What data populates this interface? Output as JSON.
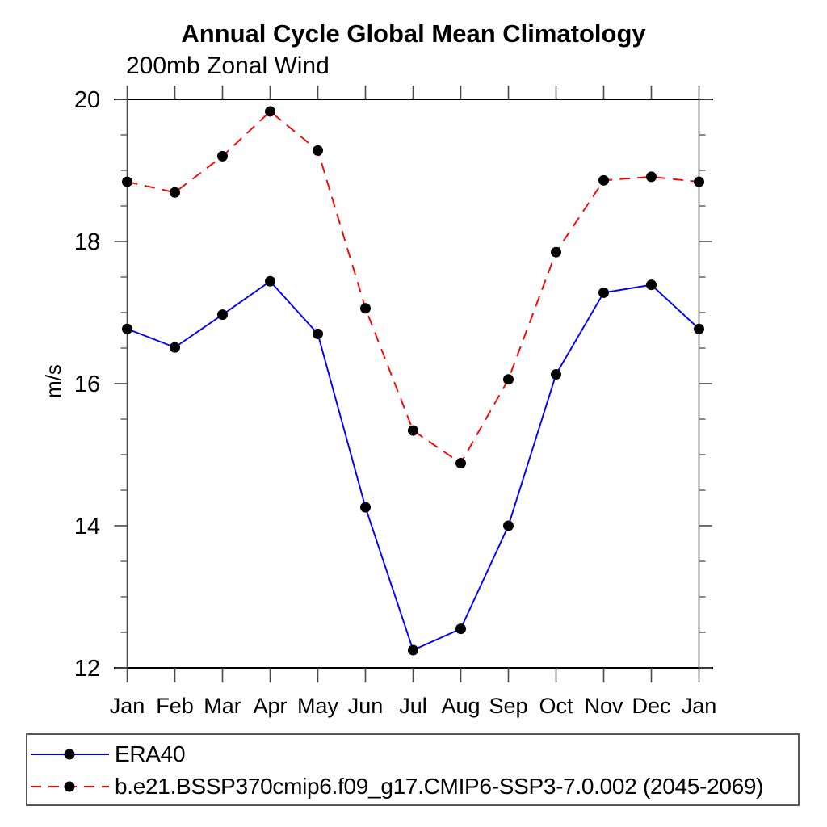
{
  "page": {
    "title": "Annual Cycle Global Mean Climatology",
    "subtitle": "200mb Zonal Wind",
    "ylabel": "m/s"
  },
  "legend": {
    "entries": [
      {
        "label": "ERA40"
      },
      {
        "label": "b.e21.BSSP370cmip6.f09_g17.CMIP6-SSP3-7.0.002 (2045-2069)"
      }
    ]
  },
  "chart_data": {
    "type": "line",
    "title": "Annual Cycle Global Mean Climatology",
    "subtitle": "200mb Zonal Wind",
    "xlabel": "",
    "ylabel": "m/s",
    "categories": [
      "Jan",
      "Feb",
      "Mar",
      "Apr",
      "May",
      "Jun",
      "Jul",
      "Aug",
      "Sep",
      "Oct",
      "Nov",
      "Dec",
      "Jan"
    ],
    "series": [
      {
        "name": "ERA40",
        "line_color": "#0000ff",
        "line_style": "solid",
        "marker": "filled-circle",
        "marker_color": "#000000",
        "values": [
          16.77,
          16.51,
          16.97,
          17.44,
          16.7,
          14.26,
          12.25,
          12.55,
          14.0,
          16.13,
          17.28,
          17.39,
          16.77
        ]
      },
      {
        "name": "b.e21.BSSP370cmip6.f09_g17.CMIP6-SSP3-7.0.002 (2045-2069)",
        "line_color": "#ff0000",
        "line_style": "dashed",
        "marker": "filled-circle",
        "marker_color": "#000000",
        "values": [
          18.84,
          18.69,
          19.2,
          19.83,
          19.28,
          17.06,
          15.34,
          14.88,
          16.06,
          17.85,
          18.86,
          18.91,
          18.84
        ]
      }
    ],
    "ylim": [
      12,
      20
    ],
    "yticks": [
      12,
      14,
      16,
      18,
      20
    ],
    "y_minor_step": 0.5,
    "grid": false,
    "legend_position": "bottom-left-box"
  }
}
